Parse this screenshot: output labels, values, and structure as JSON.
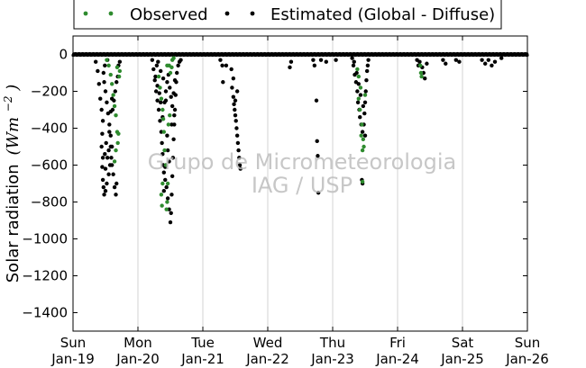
{
  "chart_data": {
    "type": "scatter",
    "title": "",
    "ylabel": "Solar radiation",
    "ylabel_unit_base": "(Wm",
    "ylabel_unit_exp": "−2",
    "ylabel_unit_close": ")",
    "ylim": [
      -1500,
      100
    ],
    "yticks": [
      0,
      -200,
      -400,
      -600,
      -800,
      -1000,
      -1200,
      -1400
    ],
    "xlim": [
      0,
      7
    ],
    "xticks": [
      {
        "day": "Sun",
        "date": "Jan-19"
      },
      {
        "day": "Mon",
        "date": "Jan-20"
      },
      {
        "day": "Tue",
        "date": "Jan-21"
      },
      {
        "day": "Wed",
        "date": "Jan-22"
      },
      {
        "day": "Thu",
        "date": "Jan-23"
      },
      {
        "day": "Fri",
        "date": "Jan-24"
      },
      {
        "day": "Sat",
        "date": "Jan-25"
      },
      {
        "day": "Sun",
        "date": "Jan-26"
      }
    ],
    "grid": "vertical",
    "legend_position": "top-center",
    "watermark": [
      "Grupo de Micrometeorologia",
      "IAG / USP"
    ],
    "series": [
      {
        "name": "Observed",
        "color": "#2e8b2e",
        "points": [
          [
            0.52,
            -30
          ],
          [
            0.55,
            -60
          ],
          [
            0.58,
            -110
          ],
          [
            0.6,
            -160
          ],
          [
            0.62,
            -220
          ],
          [
            0.64,
            -280
          ],
          [
            0.66,
            -330
          ],
          [
            0.68,
            -420
          ],
          [
            0.69,
            -480
          ],
          [
            0.66,
            -520
          ],
          [
            0.64,
            -580
          ],
          [
            0.7,
            -430
          ],
          [
            0.71,
            -120
          ],
          [
            0.72,
            -90
          ],
          [
            0.68,
            -70
          ],
          [
            1.32,
            -120
          ],
          [
            1.34,
            -180
          ],
          [
            1.36,
            -240
          ],
          [
            1.38,
            -300
          ],
          [
            1.39,
            -350
          ],
          [
            1.4,
            -420
          ],
          [
            1.41,
            -520
          ],
          [
            1.38,
            -700
          ],
          [
            1.36,
            -760
          ],
          [
            1.37,
            -820
          ],
          [
            1.44,
            -840
          ],
          [
            1.45,
            -800
          ],
          [
            1.46,
            -700
          ],
          [
            1.43,
            -600
          ],
          [
            1.47,
            -380
          ],
          [
            1.49,
            -330
          ],
          [
            1.5,
            -100
          ],
          [
            1.52,
            -70
          ],
          [
            1.48,
            -60
          ],
          [
            1.53,
            -30
          ],
          [
            1.55,
            -20
          ],
          [
            1.45,
            -60
          ],
          [
            4.4,
            -240
          ],
          [
            4.42,
            -300
          ],
          [
            4.44,
            -440
          ],
          [
            4.46,
            -520
          ],
          [
            4.47,
            -460
          ],
          [
            4.48,
            -500
          ],
          [
            4.45,
            -380
          ],
          [
            4.43,
            -180
          ],
          [
            4.4,
            -120
          ],
          [
            4.38,
            -80
          ],
          [
            4.46,
            -690
          ],
          [
            4.5,
            -220
          ],
          [
            5.35,
            -60
          ],
          [
            5.36,
            -100
          ],
          [
            5.37,
            -120
          ]
        ]
      },
      {
        "name": "Estimated (Global - Diffuse)",
        "color": "#000000",
        "points": [
          [
            0.35,
            -40
          ],
          [
            0.38,
            -90
          ],
          [
            0.4,
            -160
          ],
          [
            0.42,
            -240
          ],
          [
            0.44,
            -300
          ],
          [
            0.46,
            -360
          ],
          [
            0.45,
            -430
          ],
          [
            0.44,
            -500
          ],
          [
            0.46,
            -560
          ],
          [
            0.45,
            -610
          ],
          [
            0.46,
            -680
          ],
          [
            0.47,
            -720
          ],
          [
            0.48,
            -760
          ],
          [
            0.5,
            -740
          ],
          [
            0.52,
            -700
          ],
          [
            0.55,
            -650
          ],
          [
            0.57,
            -600
          ],
          [
            0.59,
            -560
          ],
          [
            0.6,
            -500
          ],
          [
            0.58,
            -440
          ],
          [
            0.56,
            -380
          ],
          [
            0.54,
            -320
          ],
          [
            0.52,
            -260
          ],
          [
            0.5,
            -200
          ],
          [
            0.48,
            -150
          ],
          [
            0.47,
            -100
          ],
          [
            0.49,
            -60
          ],
          [
            0.53,
            -30
          ],
          [
            0.61,
            -300
          ],
          [
            0.63,
            -250
          ],
          [
            0.65,
            -200
          ],
          [
            0.67,
            -150
          ],
          [
            0.69,
            -120
          ],
          [
            0.7,
            -60
          ],
          [
            0.72,
            -40
          ],
          [
            0.56,
            -420
          ],
          [
            0.58,
            -500
          ],
          [
            0.6,
            -600
          ],
          [
            0.62,
            -650
          ],
          [
            0.64,
            -720
          ],
          [
            0.66,
            -760
          ],
          [
            0.67,
            -700
          ],
          [
            0.5,
            -620
          ],
          [
            0.49,
            -540
          ],
          [
            0.51,
            -480
          ],
          [
            0.53,
            -560
          ],
          [
            0.55,
            -520
          ],
          [
            0.58,
            -310
          ],
          [
            0.6,
            -240
          ],
          [
            1.22,
            -30
          ],
          [
            1.24,
            -80
          ],
          [
            1.26,
            -140
          ],
          [
            1.28,
            -200
          ],
          [
            1.3,
            -250
          ],
          [
            1.32,
            -300
          ],
          [
            1.34,
            -360
          ],
          [
            1.36,
            -420
          ],
          [
            1.37,
            -480
          ],
          [
            1.38,
            -540
          ],
          [
            1.39,
            -600
          ],
          [
            1.4,
            -640
          ],
          [
            1.42,
            -680
          ],
          [
            1.44,
            -720
          ],
          [
            1.46,
            -780
          ],
          [
            1.48,
            -840
          ],
          [
            1.5,
            -910
          ],
          [
            1.51,
            -860
          ],
          [
            1.52,
            -760
          ],
          [
            1.53,
            -660
          ],
          [
            1.54,
            -560
          ],
          [
            1.55,
            -460
          ],
          [
            1.56,
            -380
          ],
          [
            1.57,
            -300
          ],
          [
            1.58,
            -220
          ],
          [
            1.59,
            -150
          ],
          [
            1.6,
            -100
          ],
          [
            1.62,
            -60
          ],
          [
            1.3,
            -170
          ],
          [
            1.33,
            -210
          ],
          [
            1.35,
            -260
          ],
          [
            1.38,
            -340
          ],
          [
            1.41,
            -260
          ],
          [
            1.43,
            -200
          ],
          [
            1.45,
            -150
          ],
          [
            1.47,
            -110
          ],
          [
            1.49,
            -180
          ],
          [
            1.51,
            -230
          ],
          [
            1.53,
            -280
          ],
          [
            1.56,
            -330
          ],
          [
            1.64,
            -40
          ],
          [
            1.66,
            -30
          ],
          [
            1.27,
            -120
          ],
          [
            1.29,
            -60
          ],
          [
            1.31,
            -40
          ],
          [
            1.35,
            -90
          ],
          [
            1.39,
            -130
          ],
          [
            1.43,
            -250
          ],
          [
            1.46,
            -520
          ],
          [
            1.48,
            -580
          ],
          [
            1.42,
            -610
          ],
          [
            1.4,
            -740
          ],
          [
            1.45,
            -440
          ],
          [
            1.52,
            -380
          ],
          [
            1.55,
            -210
          ],
          [
            1.57,
            -140
          ],
          [
            2.27,
            -30
          ],
          [
            2.3,
            -60
          ],
          [
            2.31,
            -150
          ],
          [
            2.44,
            -80
          ],
          [
            2.45,
            -180
          ],
          [
            2.47,
            -230
          ],
          [
            2.48,
            -270
          ],
          [
            2.49,
            -300
          ],
          [
            2.5,
            -330
          ],
          [
            2.51,
            -360
          ],
          [
            2.52,
            -400
          ],
          [
            2.53,
            -440
          ],
          [
            2.54,
            -480
          ],
          [
            2.55,
            -520
          ],
          [
            2.56,
            -560
          ],
          [
            2.57,
            -600
          ],
          [
            2.58,
            -620
          ],
          [
            2.5,
            -250
          ],
          [
            2.53,
            -200
          ],
          [
            2.47,
            -130
          ],
          [
            2.36,
            -60
          ],
          [
            3.34,
            -70
          ],
          [
            3.36,
            -40
          ],
          [
            3.7,
            -30
          ],
          [
            3.72,
            -60
          ],
          [
            3.75,
            -250
          ],
          [
            3.76,
            -470
          ],
          [
            3.77,
            -550
          ],
          [
            3.78,
            -750
          ],
          [
            3.82,
            -30
          ],
          [
            3.9,
            -40
          ],
          [
            4.05,
            -30
          ],
          [
            4.3,
            -20
          ],
          [
            4.32,
            -60
          ],
          [
            4.34,
            -110
          ],
          [
            4.36,
            -150
          ],
          [
            4.38,
            -200
          ],
          [
            4.39,
            -260
          ],
          [
            4.41,
            -300
          ],
          [
            4.42,
            -340
          ],
          [
            4.44,
            -380
          ],
          [
            4.46,
            -420
          ],
          [
            4.48,
            -380
          ],
          [
            4.49,
            -320
          ],
          [
            4.5,
            -260
          ],
          [
            4.51,
            -200
          ],
          [
            4.52,
            -140
          ],
          [
            4.53,
            -90
          ],
          [
            4.54,
            -60
          ],
          [
            4.47,
            -280
          ],
          [
            4.43,
            -220
          ],
          [
            4.4,
            -160
          ],
          [
            4.37,
            -100
          ],
          [
            4.45,
            -680
          ],
          [
            4.46,
            -700
          ],
          [
            4.5,
            -440
          ],
          [
            4.33,
            -40
          ],
          [
            4.55,
            -30
          ],
          [
            5.3,
            -30
          ],
          [
            5.32,
            -60
          ],
          [
            5.34,
            -40
          ],
          [
            5.38,
            -70
          ],
          [
            5.4,
            -100
          ],
          [
            5.42,
            -130
          ],
          [
            5.45,
            -50
          ],
          [
            5.7,
            -30
          ],
          [
            5.74,
            -50
          ],
          [
            5.9,
            -30
          ],
          [
            5.95,
            -40
          ],
          [
            6.3,
            -30
          ],
          [
            6.35,
            -50
          ],
          [
            6.4,
            -30
          ],
          [
            6.45,
            -60
          ],
          [
            6.5,
            -40
          ],
          [
            6.6,
            -20
          ]
        ]
      }
    ]
  }
}
